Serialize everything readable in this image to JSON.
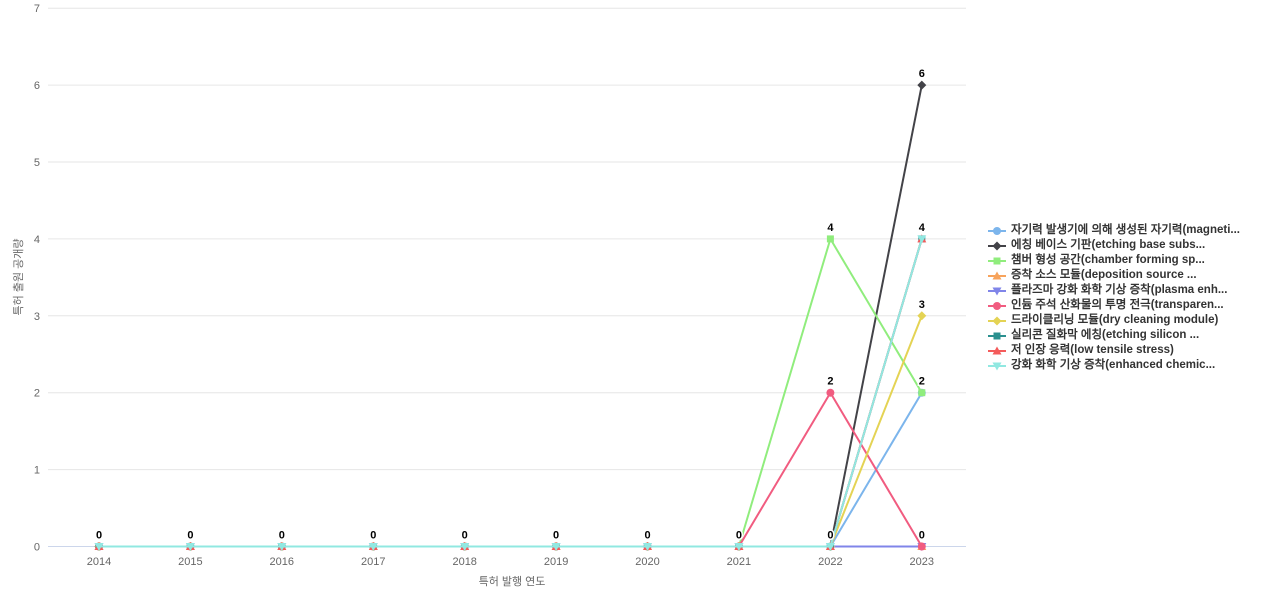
{
  "chart_data": {
    "type": "line",
    "title": "",
    "xlabel": "특허 발행 연도",
    "ylabel": "특허 출원 공개량",
    "x_categories": [
      "2014",
      "2015",
      "2016",
      "2017",
      "2018",
      "2019",
      "2020",
      "2021",
      "2022",
      "2023"
    ],
    "y_ticks": [
      0,
      1,
      2,
      3,
      4,
      5,
      6,
      7
    ],
    "ylim": [
      0,
      7
    ],
    "grid": "horizontal",
    "legend_position": "right",
    "axis_label_color": "#666666",
    "legend_text_color": "#333333",
    "gridline_color": "#e6e6e6",
    "axis_line_color": "#ccd6eb",
    "series": [
      {
        "name": "자기력 발생기에 의해 생성된 자기력(magneti...",
        "color": "#7cb5ec",
        "marker": "circle",
        "values": [
          0,
          0,
          0,
          0,
          0,
          0,
          0,
          0,
          0,
          2
        ]
      },
      {
        "name": "에칭 베이스 기판(etching base subs...",
        "color": "#434348",
        "marker": "diamond",
        "values": [
          0,
          0,
          0,
          0,
          0,
          0,
          0,
          0,
          0,
          6
        ]
      },
      {
        "name": "챔버 형성 공간(chamber forming sp...",
        "color": "#90ed7d",
        "marker": "square",
        "values": [
          0,
          0,
          0,
          0,
          0,
          0,
          0,
          0,
          4,
          2
        ]
      },
      {
        "name": "증착 소스 모듈(deposition source ...",
        "color": "#f7a35c",
        "marker": "triangle",
        "values": [
          0,
          0,
          0,
          0,
          0,
          0,
          0,
          0,
          0,
          0
        ]
      },
      {
        "name": "플라즈마 강화 화학 기상 증착(plasma enh...",
        "color": "#8085e9",
        "marker": "triangle-down",
        "values": [
          0,
          0,
          0,
          0,
          0,
          0,
          0,
          0,
          0,
          0
        ]
      },
      {
        "name": "인듐 주석 산화물의 투명 전극(transparen...",
        "color": "#f15c80",
        "marker": "circle",
        "values": [
          0,
          0,
          0,
          0,
          0,
          0,
          0,
          0,
          2,
          0
        ]
      },
      {
        "name": "드라이클리닝 모듈(dry cleaning module)",
        "color": "#e4d354",
        "marker": "diamond",
        "values": [
          0,
          0,
          0,
          0,
          0,
          0,
          0,
          0,
          0,
          3
        ]
      },
      {
        "name": "실리콘 질화막 에칭(etching silicon ...",
        "color": "#2b908f",
        "marker": "square",
        "values": [
          0,
          0,
          0,
          0,
          0,
          0,
          0,
          0,
          0,
          4
        ]
      },
      {
        "name": "저 인장 응력(low tensile stress)",
        "color": "#f45b5b",
        "marker": "triangle",
        "values": [
          0,
          0,
          0,
          0,
          0,
          0,
          0,
          0,
          0,
          4
        ]
      },
      {
        "name": "강화 화학 기상 증착(enhanced chemic...",
        "color": "#91e8e1",
        "marker": "triangle-down",
        "values": [
          0,
          0,
          0,
          0,
          0,
          0,
          0,
          0,
          0,
          4
        ]
      }
    ],
    "visible_point_labels": [
      {
        "year": "2014",
        "value": 0
      },
      {
        "year": "2015",
        "value": 0
      },
      {
        "year": "2016",
        "value": 0
      },
      {
        "year": "2017",
        "value": 0
      },
      {
        "year": "2018",
        "value": 0
      },
      {
        "year": "2019",
        "value": 0
      },
      {
        "year": "2020",
        "value": 0
      },
      {
        "year": "2021",
        "value": 0
      },
      {
        "year": "2022",
        "value": 0
      },
      {
        "year": "2022",
        "value": 2
      },
      {
        "year": "2022",
        "value": 4
      },
      {
        "year": "2023",
        "value": 0
      },
      {
        "year": "2023",
        "value": 2
      },
      {
        "year": "2023",
        "value": 3
      },
      {
        "year": "2023",
        "value": 4
      },
      {
        "year": "2023",
        "value": 6
      }
    ]
  }
}
